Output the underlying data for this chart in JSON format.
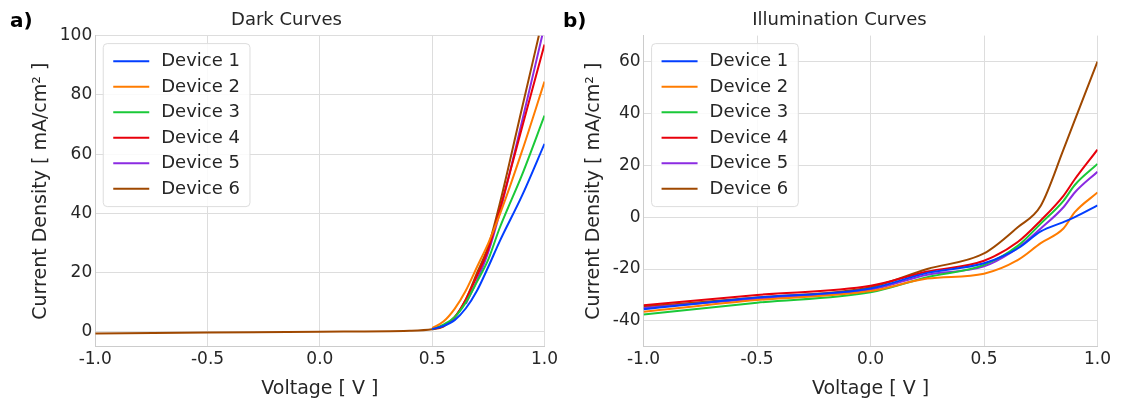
{
  "chart_data": [
    {
      "type": "line",
      "title": "Dark Curves",
      "xlabel": "Voltage [ V ]",
      "ylabel": "Current Density [ mA/cm² ]",
      "annotations": [
        "a)"
      ],
      "x": [
        0.5,
        0.55,
        0.6,
        0.65,
        0.7,
        0.75,
        0.8,
        0.9,
        1
      ],
      "series": [
        {
          "name": "Device 1",
          "color": "#023eff",
          "values": [
            1,
            2,
            4,
            8,
            14,
            22,
            30.5,
            46,
            63.5
          ]
        },
        {
          "name": "Device 2",
          "color": "#ff7c00",
          "values": [
            1.3,
            3.5,
            7.8,
            14,
            22,
            30,
            39.4,
            61,
            84.5
          ]
        },
        {
          "name": "Device 3",
          "color": "#1ac938",
          "values": [
            1,
            2.5,
            5,
            10,
            17,
            24.5,
            35,
            53,
            73
          ]
        },
        {
          "name": "Device 4",
          "color": "#e8000b",
          "values": [
            1,
            2,
            5,
            11,
            19,
            28,
            41,
            69,
            97
          ]
        },
        {
          "name": "Device 5",
          "color": "#8b2be2",
          "x": [
            0.65,
            0.7,
            0.75,
            0.8,
            0.9,
            0.99
          ],
          "values": [
            9.5,
            17.5,
            27,
            40,
            71,
            100
          ]
        },
        {
          "name": "Device 6",
          "color": "#9f4800",
          "x": [
            -1,
            -0.5,
            0,
            0.4,
            0.5,
            0.55,
            0.6,
            0.65,
            0.7,
            0.75,
            0.8,
            0.9,
            0.975
          ],
          "values": [
            -0.5,
            -0.2,
            0.1,
            0.4,
            0.9,
            1.8,
            5,
            11,
            20,
            29,
            43,
            75.6,
            100
          ]
        }
      ],
      "xlim": [
        -1,
        1
      ],
      "xticks": [
        {
          "value": -1,
          "label": "-1.0"
        },
        {
          "value": -0.5,
          "label": "-0.5"
        },
        {
          "value": 0,
          "label": "0.0"
        },
        {
          "value": 0.5,
          "label": "0.5"
        },
        {
          "value": 1,
          "label": "1.0"
        }
      ],
      "ylim": [
        -5,
        100
      ],
      "yticks": [
        0,
        20,
        40,
        60,
        80,
        100
      ],
      "grid": true,
      "legend": "top left",
      "marker": "none",
      "line_style": "solid"
    },
    {
      "type": "line",
      "title": "Illumination Curves",
      "xlabel": "Voltage [ V ]",
      "ylabel": "Current Density [ mA/cm² ]",
      "annotations": [
        "b)"
      ],
      "x": [
        -1,
        -0.5,
        0,
        0.25,
        0.5,
        0.65,
        0.75,
        0.85,
        0.9,
        1
      ],
      "series": [
        {
          "name": "Device 1",
          "color": "#023eff",
          "values": [
            -35.5,
            -31,
            -27.5,
            -21.5,
            -17.8,
            -12,
            -5.5,
            -1.9,
            0,
            4.5
          ]
        },
        {
          "name": "Device 2",
          "color": "#ff7c00",
          "values": [
            -36.5,
            -32,
            -28.5,
            -23.7,
            -21.8,
            -16.5,
            -10,
            -4.4,
            1.9,
            9.5
          ]
        },
        {
          "name": "Device 3",
          "color": "#1ac938",
          "values": [
            -37.5,
            -33,
            -29,
            -23.2,
            -18.4,
            -11,
            -2.5,
            6.3,
            12.4,
            20.5
          ]
        },
        {
          "name": "Device 4",
          "color": "#e8000b",
          "values": [
            -34,
            -30,
            -26.5,
            -21,
            -16.8,
            -9.5,
            -1.3,
            8.2,
            14.6,
            26
          ]
        },
        {
          "name": "Device 5",
          "color": "#8b2be2",
          "values": [
            -35,
            -31.5,
            -28,
            -22.2,
            -19,
            -11.8,
            -4.4,
            3.8,
            9.5,
            17.5
          ]
        },
        {
          "name": "Device 6",
          "color": "#9f4800",
          "values": [
            -34.5,
            -31,
            -27,
            -20,
            -14,
            -3.8,
            4.4,
            26,
            37.4,
            60
          ]
        }
      ],
      "xlim": [
        -1,
        1
      ],
      "xticks": [
        {
          "value": -1,
          "label": "-1.0"
        },
        {
          "value": -0.5,
          "label": "-0.5"
        },
        {
          "value": 0,
          "label": "0.0"
        },
        {
          "value": 0.5,
          "label": "0.5"
        },
        {
          "value": 1,
          "label": "1.0"
        }
      ],
      "ylim": [
        -50,
        70
      ],
      "yticks": [
        -40,
        -20,
        0,
        20,
        40,
        60
      ],
      "grid": true,
      "legend": "top left",
      "marker": "none",
      "line_style": "solid"
    }
  ]
}
